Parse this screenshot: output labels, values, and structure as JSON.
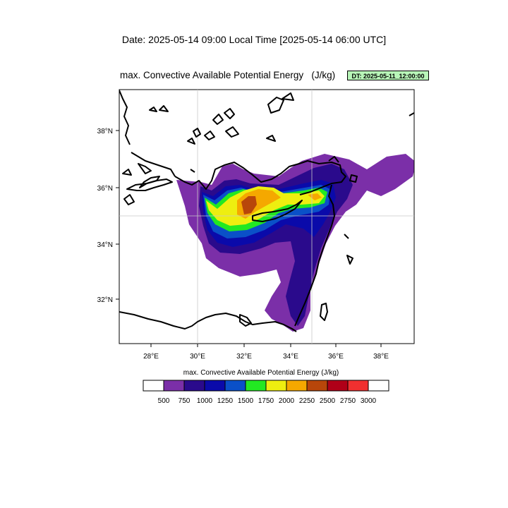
{
  "header": {
    "date_title": "Date: 2025-05-14  09:00 Local Time [2025-05-14  06:00 UTC]",
    "map_title": "max. Convective Available Potential Energy   (J/kg)",
    "dt_badge": "DT: 2025-05-11_12:00:00",
    "dt_badge_color": "#b8f5b8"
  },
  "map": {
    "lon_ticks": [
      "28°E",
      "30°E",
      "32°E",
      "34°E",
      "36°E",
      "38°E"
    ],
    "lat_ticks": [
      "38°N",
      "36°N",
      "34°N",
      "32°N"
    ],
    "gridlines": true,
    "coastline_color": "#000000"
  },
  "colorbar": {
    "title": "max. Convective Available Potential Energy  (J/kg)",
    "levels": [
      "500",
      "750",
      "1000",
      "1250",
      "1500",
      "1750",
      "2000",
      "2250",
      "2500",
      "2750",
      "3000"
    ],
    "colors": [
      "#ffffff",
      "#7b2fa8",
      "#2a0a8c",
      "#0a0aaa",
      "#0a50c8",
      "#22e822",
      "#eeee10",
      "#f5a800",
      "#b8460a",
      "#b00018",
      "#f03030",
      "#ffffff"
    ]
  }
}
